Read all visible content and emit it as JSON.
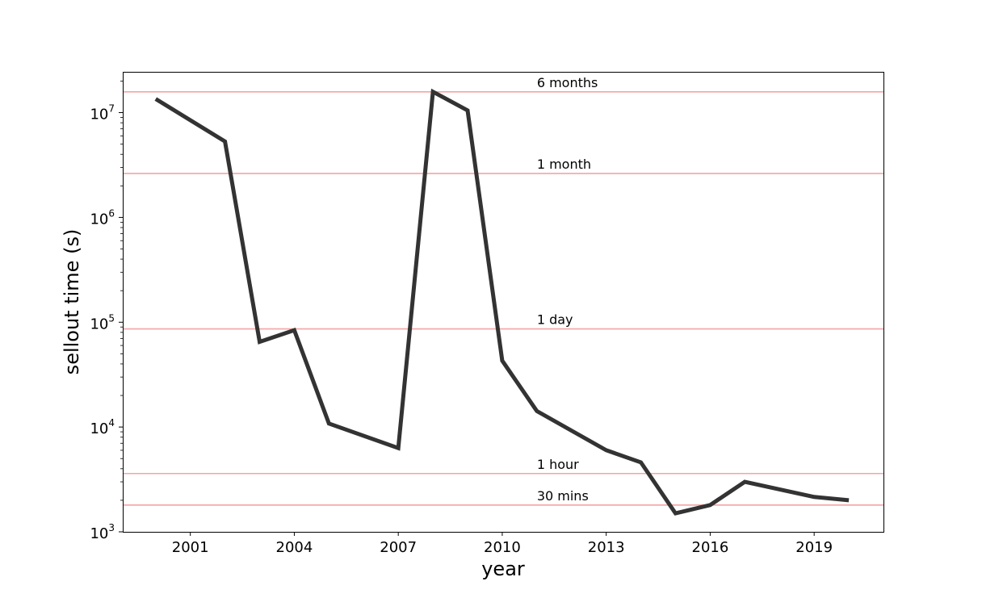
{
  "chart_data": {
    "type": "line",
    "title": "",
    "xlabel": "year",
    "ylabel": "sellout time (s)",
    "yscale": "log",
    "xlim": [
      1999.05,
      2021.0
    ],
    "ylim": [
      1000,
      24500000
    ],
    "grid": false,
    "x_ticks": [
      2001,
      2004,
      2007,
      2010,
      2013,
      2016,
      2019
    ],
    "y_ticks": [
      {
        "base": "10",
        "exp": "3",
        "value": 1000
      },
      {
        "base": "10",
        "exp": "4",
        "value": 10000
      },
      {
        "base": "10",
        "exp": "5",
        "value": 100000
      },
      {
        "base": "10",
        "exp": "6",
        "value": 1000000
      },
      {
        "base": "10",
        "exp": "7",
        "value": 10000000
      }
    ],
    "series": [
      {
        "color": "#333333",
        "x": [
          2000,
          2002,
          2003,
          2004,
          2005,
          2007,
          2008,
          2009,
          2010,
          2011,
          2013,
          2014,
          2015,
          2016,
          2017,
          2019,
          2020
        ],
        "y": [
          13500000,
          5300000,
          65000,
          84000,
          10800,
          6300,
          15800000,
          10500000,
          43000,
          14200,
          6000,
          4600,
          1500,
          1800,
          3000,
          2150,
          2000
        ]
      }
    ],
    "reference_lines": [
      {
        "label": "6 months",
        "value": 15768000,
        "color": "#f4a4a4"
      },
      {
        "label": "1 month",
        "value": 2628000,
        "color": "#f4a4a4"
      },
      {
        "label": "1 day",
        "value": 86400,
        "color": "#f4a4a4"
      },
      {
        "label": "1 hour",
        "value": 3600,
        "color": "#f4a4a4"
      },
      {
        "label": "30 mins",
        "value": 1800,
        "color": "#f4a4a4"
      }
    ],
    "reference_label_x": 2011
  }
}
